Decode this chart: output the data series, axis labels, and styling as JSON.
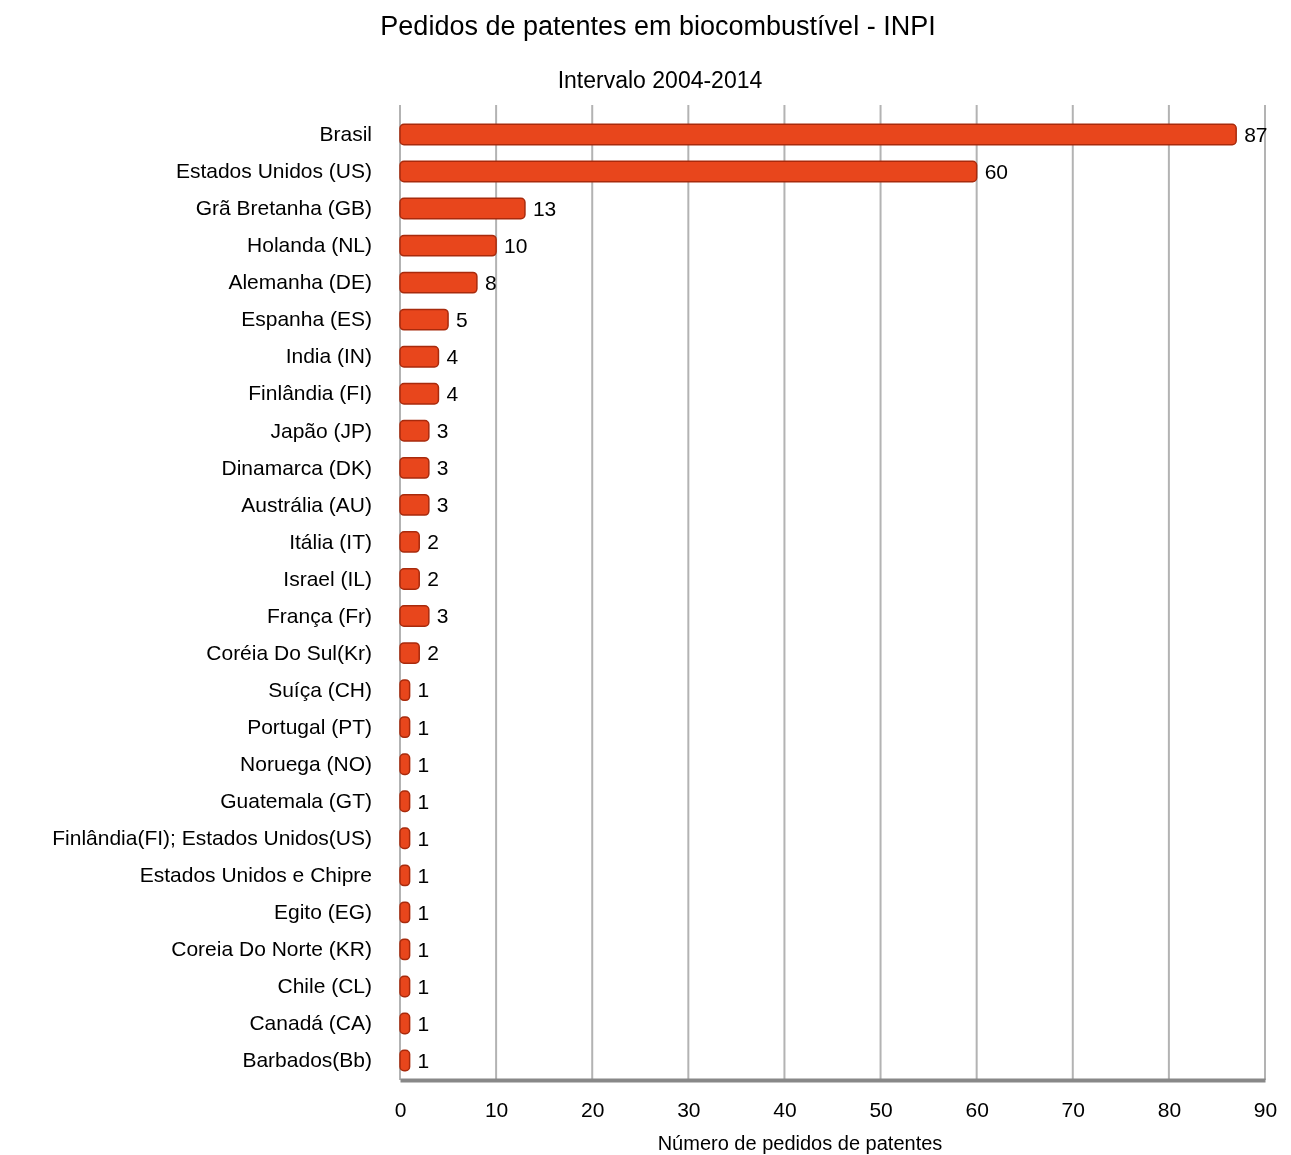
{
  "chart_data": {
    "type": "bar",
    "orientation": "horizontal",
    "title": "Pedidos de patentes em biocombustível - INPI",
    "subtitle": "Intervalo 2004-2014",
    "xlabel": "Número de pedidos de patentes",
    "categories": [
      "Brasil",
      "Estados Unidos (US)",
      "Grã Bretanha (GB)",
      "Holanda (NL)",
      "Alemanha (DE)",
      "Espanha (ES)",
      "India (IN)",
      "Finlândia (FI)",
      "Japão (JP)",
      "Dinamarca (DK)",
      "Austrália (AU)",
      "Itália (IT)",
      "Israel (IL)",
      "França (Fr)",
      "Coréia Do Sul(Kr)",
      "Suíça (CH)",
      "Portugal (PT)",
      "Noruega (NO)",
      "Guatemala (GT)",
      "Finlândia(FI); Estados Unidos(US)",
      "Estados Unidos e Chipre",
      "Egito (EG)",
      "Coreia Do Norte (KR)",
      "Chile (CL)",
      "Canadá (CA)",
      "Barbados(Bb)"
    ],
    "values": [
      87,
      60,
      13,
      10,
      8,
      5,
      4,
      4,
      3,
      3,
      3,
      2,
      2,
      3,
      2,
      1,
      1,
      1,
      1,
      1,
      1,
      1,
      1,
      1,
      1,
      1
    ],
    "color": "#e8461c",
    "xlim": [
      0,
      90
    ],
    "xticks": [
      0,
      10,
      20,
      30,
      40,
      50,
      60,
      70,
      80,
      90
    ],
    "grid": "x",
    "data_labels": true
  }
}
